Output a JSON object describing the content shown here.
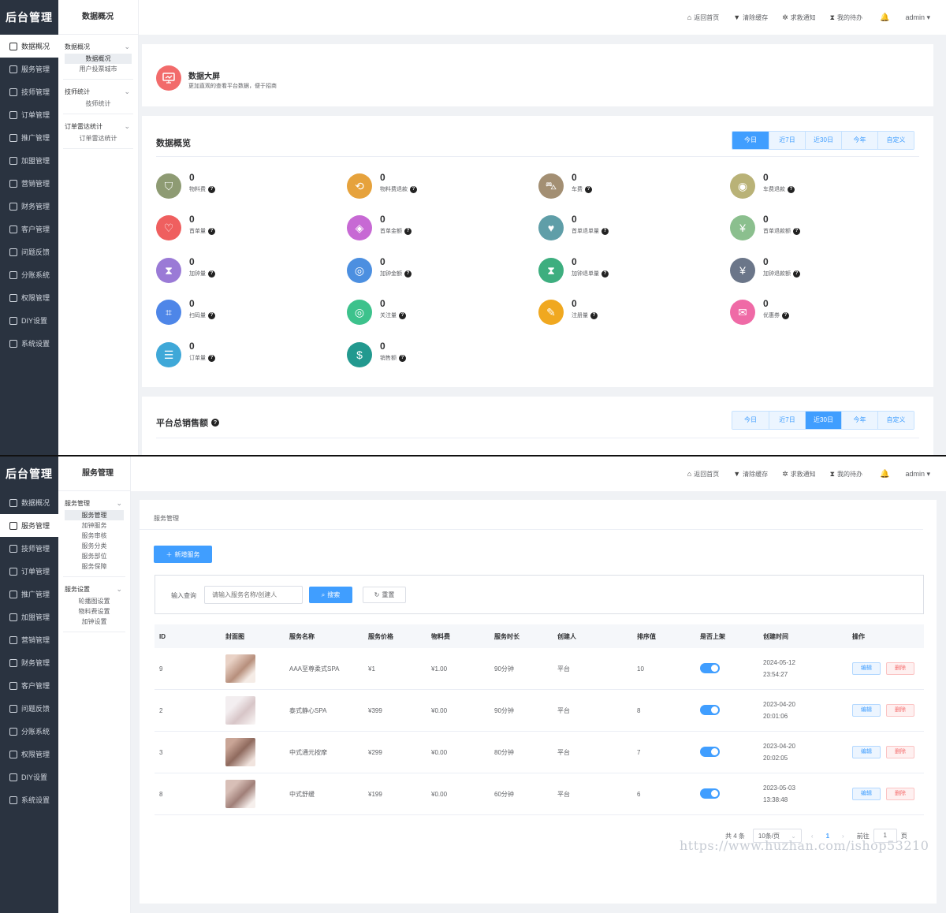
{
  "app_title": "后台管理",
  "sidebar_items": [
    "数据概况",
    "服务管理",
    "技师管理",
    "订单管理",
    "推广管理",
    "加盟管理",
    "营销管理",
    "财务管理",
    "客户管理",
    "问题反馈",
    "分账系统",
    "权限管理",
    "DIY设置",
    "系统设置"
  ],
  "topbar": {
    "home": "返回首页",
    "clear_cache": "清除缓存",
    "sos": "求救通知",
    "todo": "我的待办",
    "user": "admin"
  },
  "s1": {
    "sub_title": "数据概况",
    "groups": [
      {
        "header": "数据概况",
        "items": [
          "数据概况",
          "用户投票城市"
        ]
      },
      {
        "header": "技师统计",
        "items": [
          "技师统计"
        ]
      },
      {
        "header": "订单雷达统计",
        "items": [
          "订单雷达统计"
        ]
      }
    ],
    "banner": {
      "title": "数据大屏",
      "desc": "更加直观的查看平台数据，便于招商"
    },
    "overview_title": "数据概览",
    "range_tabs": [
      "今日",
      "近7日",
      "近30日",
      "今年",
      "自定义"
    ],
    "stats": [
      {
        "value": "0",
        "label": "物料费",
        "color": "#8e9b73",
        "icon": "bag-icon"
      },
      {
        "value": "0",
        "label": "物料费退款",
        "color": "#e6a23c",
        "icon": "refund-icon"
      },
      {
        "value": "0",
        "label": "车费",
        "color": "#a38f73",
        "icon": "car-icon"
      },
      {
        "value": "0",
        "label": "车费退款",
        "color": "#b9b277",
        "icon": "coin-icon"
      },
      {
        "value": "0",
        "label": "首单量",
        "color": "#ef5f5f",
        "icon": "heart-icon"
      },
      {
        "value": "0",
        "label": "首单金额",
        "color": "#c769d4",
        "icon": "drop-icon"
      },
      {
        "value": "0",
        "label": "首单退单量",
        "color": "#5f9ea8",
        "icon": "heart-hand-icon"
      },
      {
        "value": "0",
        "label": "首单退款额",
        "color": "#8bbf8e",
        "icon": "yen-icon"
      },
      {
        "value": "0",
        "label": "加钟量",
        "color": "#9a7ad6",
        "icon": "hourglass-icon"
      },
      {
        "value": "0",
        "label": "加钟金额",
        "color": "#4c8fe0",
        "icon": "target-icon"
      },
      {
        "value": "0",
        "label": "加钟退单量",
        "color": "#3dae7f",
        "icon": "hourglass-icon"
      },
      {
        "value": "0",
        "label": "加钟退款额",
        "color": "#6b7689",
        "icon": "yen-icon"
      },
      {
        "value": "0",
        "label": "扫码量",
        "color": "#4e86e8",
        "icon": "scan-icon"
      },
      {
        "value": "0",
        "label": "关注量",
        "color": "#3dc28c",
        "icon": "follow-icon"
      },
      {
        "value": "0",
        "label": "注册量",
        "color": "#f0a820",
        "icon": "register-icon"
      },
      {
        "value": "0",
        "label": "优惠券",
        "color": "#ef6aa6",
        "icon": "coupon-icon"
      },
      {
        "value": "0",
        "label": "订单量",
        "color": "#3fa8d8",
        "icon": "order-icon"
      },
      {
        "value": "0",
        "label": "销售额",
        "color": "#22998f",
        "icon": "money-bag-icon"
      }
    ],
    "sales_title": "平台总销售额",
    "sales_tabs": [
      "今日",
      "近7日",
      "近30日",
      "今年",
      "自定义"
    ]
  },
  "s2": {
    "sub_title": "服务管理",
    "groups": [
      {
        "header": "服务管理",
        "items": [
          "服务管理",
          "加钟服务",
          "服务审核",
          "服务分类",
          "服务部位",
          "服务保障"
        ]
      },
      {
        "header": "服务设置",
        "items": [
          "轮播图设置",
          "物料费设置",
          "加钟设置"
        ]
      }
    ],
    "page_title": "服务管理",
    "add_button": "新增服务",
    "search_label": "输入查询",
    "search_placeholder": "请输入服务名称/创建人",
    "search_button": "搜索",
    "reset_button": "重置",
    "columns": [
      "ID",
      "封面图",
      "服务名称",
      "服务价格",
      "物料费",
      "服务时长",
      "创建人",
      "排序值",
      "是否上架",
      "创建时间",
      "操作"
    ],
    "rows": [
      {
        "id": "9",
        "name": "AAA至尊柔式SPA",
        "price": "¥1",
        "material": "¥1.00",
        "duration": "90分钟",
        "creator": "平台",
        "sort": "10",
        "date": "2024-05-12",
        "time": "23:54:27"
      },
      {
        "id": "2",
        "name": "泰式静心SPA",
        "price": "¥399",
        "material": "¥0.00",
        "duration": "90分钟",
        "creator": "平台",
        "sort": "8",
        "date": "2023-04-20",
        "time": "20:01:06"
      },
      {
        "id": "3",
        "name": "中式通元按摩",
        "price": "¥299",
        "material": "¥0.00",
        "duration": "80分钟",
        "creator": "平台",
        "sort": "7",
        "date": "2023-04-20",
        "time": "20:02:05"
      },
      {
        "id": "8",
        "name": "中式舒缓",
        "price": "¥199",
        "material": "¥0.00",
        "duration": "60分钟",
        "creator": "平台",
        "sort": "6",
        "date": "2023-05-03",
        "time": "13:38:48"
      }
    ],
    "edit_label": "编辑",
    "delete_label": "删除",
    "pagination": {
      "total": "共 4 条",
      "per_page": "10条/页",
      "current": "1",
      "goto": "前往",
      "goto_value": "1",
      "page_suffix": "页"
    },
    "watermark": "https://www.huzhan.com/ishop53210"
  }
}
